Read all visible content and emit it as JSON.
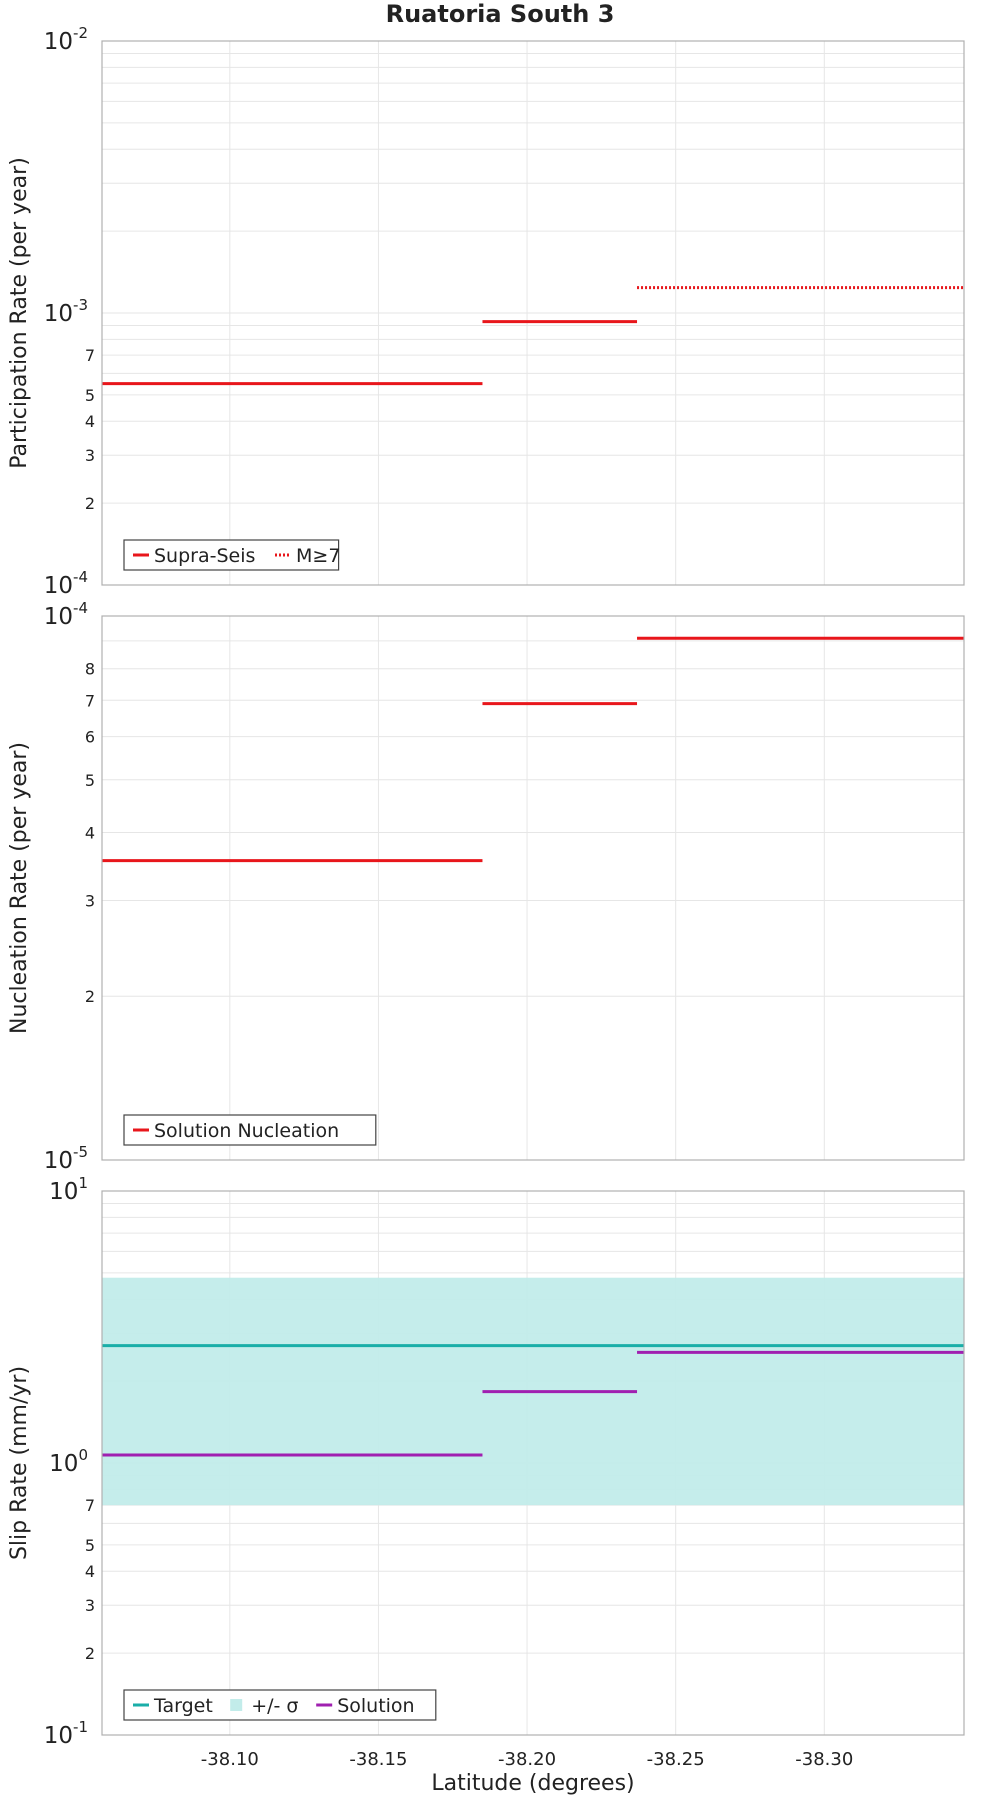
{
  "colors": {
    "red": "#e8161b",
    "target": "#1aaea8",
    "band": "#c2ecea",
    "solution": "#a020b0"
  },
  "chart_data": {
    "title": "Ruatoria South 3",
    "xlabel": "Latitude (degrees)",
    "x_range": [
      -38.057,
      -38.347
    ],
    "x_ticks": [
      "-38.10",
      "-38.15",
      "-38.20",
      "-38.25",
      "-38.30"
    ],
    "x_tick_values": [
      -38.1,
      -38.15,
      -38.2,
      -38.25,
      -38.3
    ],
    "panels": [
      {
        "type": "line",
        "scale": "log",
        "ylabel": "Participation Rate (per year)",
        "ylim": [
          0.0001,
          0.01
        ],
        "major_ticks": [
          {
            "value": 0.01,
            "base": "10",
            "exp": "-2"
          },
          {
            "value": 0.001,
            "base": "10",
            "exp": "-3"
          },
          {
            "value": 0.0001,
            "base": "10",
            "exp": "-4"
          }
        ],
        "minor_labels": [
          "2",
          "3",
          "4",
          "5",
          "7"
        ],
        "legend": [
          {
            "label": "Supra-Seis",
            "style": "solid-red"
          },
          {
            "label": "M≥7",
            "style": "dotted-red"
          }
        ],
        "series": [
          {
            "name": "Supra-Seis",
            "style": "solid-red",
            "segments": [
              [
                -38.057,
                -38.185,
                0.00055
              ],
              [
                -38.185,
                -38.237,
                0.00093
              ]
            ]
          },
          {
            "name": "M≥7",
            "style": "dotted-red",
            "segments": [
              [
                -38.237,
                -38.347,
                0.00124
              ]
            ]
          }
        ]
      },
      {
        "type": "line",
        "scale": "log",
        "ylabel": "Nucleation Rate (per year)",
        "ylim": [
          1e-05,
          0.0001
        ],
        "major_ticks": [
          {
            "value": 0.0001,
            "base": "10",
            "exp": "-4"
          },
          {
            "value": 1e-05,
            "base": "10",
            "exp": "-5"
          }
        ],
        "minor_labels": [
          "2",
          "3",
          "4",
          "5",
          "6",
          "7",
          "8"
        ],
        "legend": [
          {
            "label": "Solution Nucleation",
            "style": "solid-red"
          }
        ],
        "series": [
          {
            "name": "Solution Nucleation",
            "style": "solid-red",
            "segments": [
              [
                -38.057,
                -38.185,
                3.55e-05
              ],
              [
                -38.185,
                -38.237,
                6.9e-05
              ],
              [
                -38.237,
                -38.347,
                9.1e-05
              ]
            ]
          }
        ]
      },
      {
        "type": "line",
        "scale": "log",
        "ylabel": "Slip Rate (mm/yr)",
        "ylim": [
          0.1,
          10
        ],
        "major_ticks": [
          {
            "value": 10,
            "base": "10",
            "exp": "1"
          },
          {
            "value": 1,
            "base": "10",
            "exp": "0"
          },
          {
            "value": 0.1,
            "base": "10",
            "exp": "-1"
          }
        ],
        "minor_labels": [
          "2",
          "3",
          "4",
          "5",
          "7"
        ],
        "band": {
          "low": 0.7,
          "high": 4.8
        },
        "legend": [
          {
            "label": "Target",
            "style": "solid-target"
          },
          {
            "label": "+/- σ",
            "style": "band"
          },
          {
            "label": "Solution",
            "style": "solid-solution"
          }
        ],
        "series": [
          {
            "name": "Target",
            "style": "solid-target",
            "segments": [
              [
                -38.057,
                -38.347,
                2.7
              ]
            ]
          },
          {
            "name": "Solution",
            "style": "solid-solution",
            "segments": [
              [
                -38.057,
                -38.185,
                1.07
              ],
              [
                -38.185,
                -38.237,
                1.83
              ],
              [
                -38.237,
                -38.347,
                2.55
              ]
            ]
          }
        ]
      }
    ]
  }
}
